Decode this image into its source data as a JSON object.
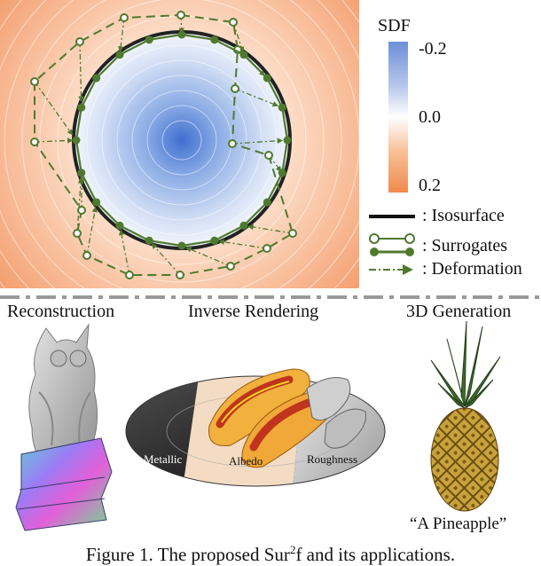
{
  "legend": {
    "sdf_title": "SDF",
    "ticks": [
      "-0.2",
      "0.0",
      "0.2"
    ],
    "items": [
      {
        "symbol": "solid-line",
        "label": ": Isosurface"
      },
      {
        "symbol": "surrogate-nodes",
        "label": ": Surrogates"
      },
      {
        "symbol": "dash-dot-arrow",
        "label": ": Deformation"
      }
    ]
  },
  "applications": [
    {
      "title": "Reconstruction"
    },
    {
      "title": "Inverse Rendering",
      "insets": [
        "Metallic",
        "Albedo",
        "Roughness"
      ]
    },
    {
      "title": "3D Generation",
      "prompt": "“A Pineapple”"
    }
  ],
  "caption": {
    "prefix": "Figure 1. The proposed Sur",
    "superscript": "2",
    "suffix": "f and its applications."
  },
  "colors": {
    "inside_sdf": "#3f6fd0",
    "outside_sdf": "#f08a4c",
    "surrogate": "#4f7a2e",
    "isosurface": "#222222"
  }
}
